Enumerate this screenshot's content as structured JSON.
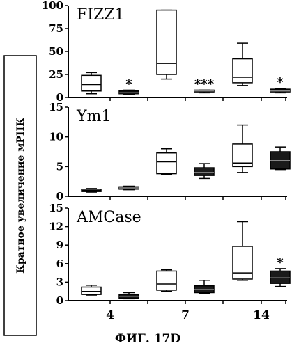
{
  "figure_caption": "ФИГ. 17D",
  "chart_data": {
    "type": "boxplot",
    "ylabel": "Кратное увеличение мРНК",
    "categories": [
      "4",
      "7",
      "14"
    ],
    "groups": [
      "open",
      "filled"
    ],
    "panels": [
      {
        "title": "FIZZ1",
        "ylim": [
          0,
          100
        ],
        "yticks": [
          "0",
          "25",
          "50",
          "75",
          "100"
        ],
        "boxes": [
          {
            "category": "4",
            "fill": "open",
            "min": 4,
            "q1": 7,
            "median": 14,
            "q3": 24,
            "max": 27,
            "mark": ""
          },
          {
            "category": "4",
            "fill": "filled",
            "min": 3,
            "q1": 4,
            "median": 5,
            "q3": 7,
            "max": 8,
            "mark": "*"
          },
          {
            "category": "7",
            "fill": "open",
            "min": 20,
            "q1": 25,
            "median": 37,
            "q3": 95,
            "max": 95,
            "mark": ""
          },
          {
            "category": "7",
            "fill": "filled",
            "min": 5,
            "q1": 6,
            "median": 7,
            "q3": 8,
            "max": 8,
            "mark": "***"
          },
          {
            "category": "14",
            "fill": "open",
            "min": 13,
            "q1": 16,
            "median": 22,
            "q3": 42,
            "max": 59,
            "mark": ""
          },
          {
            "category": "14",
            "fill": "filled",
            "min": 5,
            "q1": 6,
            "median": 7,
            "q3": 9,
            "max": 10,
            "mark": "*"
          }
        ]
      },
      {
        "title": "Ym1",
        "ylim": [
          0,
          15
        ],
        "yticks": [
          "0",
          "5",
          "10",
          "15"
        ],
        "boxes": [
          {
            "category": "4",
            "fill": "open",
            "min": 0.7,
            "q1": 0.8,
            "median": 1.0,
            "q3": 1.2,
            "max": 1.3,
            "mark": ""
          },
          {
            "category": "4",
            "fill": "filled",
            "min": 1.1,
            "q1": 1.2,
            "median": 1.4,
            "q3": 1.6,
            "max": 1.7,
            "mark": ""
          },
          {
            "category": "7",
            "fill": "open",
            "min": 3.7,
            "q1": 3.8,
            "median": 5.8,
            "q3": 7.3,
            "max": 8.0,
            "mark": ""
          },
          {
            "category": "7",
            "fill": "filled",
            "min": 3.0,
            "q1": 3.5,
            "median": 4.0,
            "q3": 4.8,
            "max": 5.5,
            "mark": ""
          },
          {
            "category": "14",
            "fill": "open",
            "min": 4.0,
            "q1": 5.0,
            "median": 5.6,
            "q3": 8.8,
            "max": 12.0,
            "mark": ""
          },
          {
            "category": "14",
            "fill": "filled",
            "min": 4.5,
            "q1": 4.6,
            "median": 6.0,
            "q3": 7.5,
            "max": 8.3,
            "mark": ""
          }
        ]
      },
      {
        "title": "AMCase",
        "ylim": [
          0,
          15
        ],
        "yticks": [
          "0",
          "3",
          "6",
          "9",
          "12",
          "15"
        ],
        "boxes": [
          {
            "category": "4",
            "fill": "open",
            "min": 0.9,
            "q1": 1.0,
            "median": 1.5,
            "q3": 2.2,
            "max": 2.5,
            "mark": ""
          },
          {
            "category": "4",
            "fill": "filled",
            "min": 0.3,
            "q1": 0.4,
            "median": 0.7,
            "q3": 1.0,
            "max": 1.3,
            "mark": ""
          },
          {
            "category": "7",
            "fill": "open",
            "min": 1.5,
            "q1": 1.7,
            "median": 2.7,
            "q3": 4.8,
            "max": 5.0,
            "mark": ""
          },
          {
            "category": "7",
            "fill": "filled",
            "min": 1.2,
            "q1": 1.3,
            "median": 1.8,
            "q3": 2.4,
            "max": 3.3,
            "mark": ""
          },
          {
            "category": "14",
            "fill": "open",
            "min": 3.3,
            "q1": 3.5,
            "median": 4.5,
            "q3": 8.8,
            "max": 12.8,
            "mark": ""
          },
          {
            "category": "14",
            "fill": "filled",
            "min": 2.3,
            "q1": 2.8,
            "median": 3.7,
            "q3": 4.8,
            "max": 5.2,
            "mark": "*"
          }
        ]
      }
    ]
  }
}
